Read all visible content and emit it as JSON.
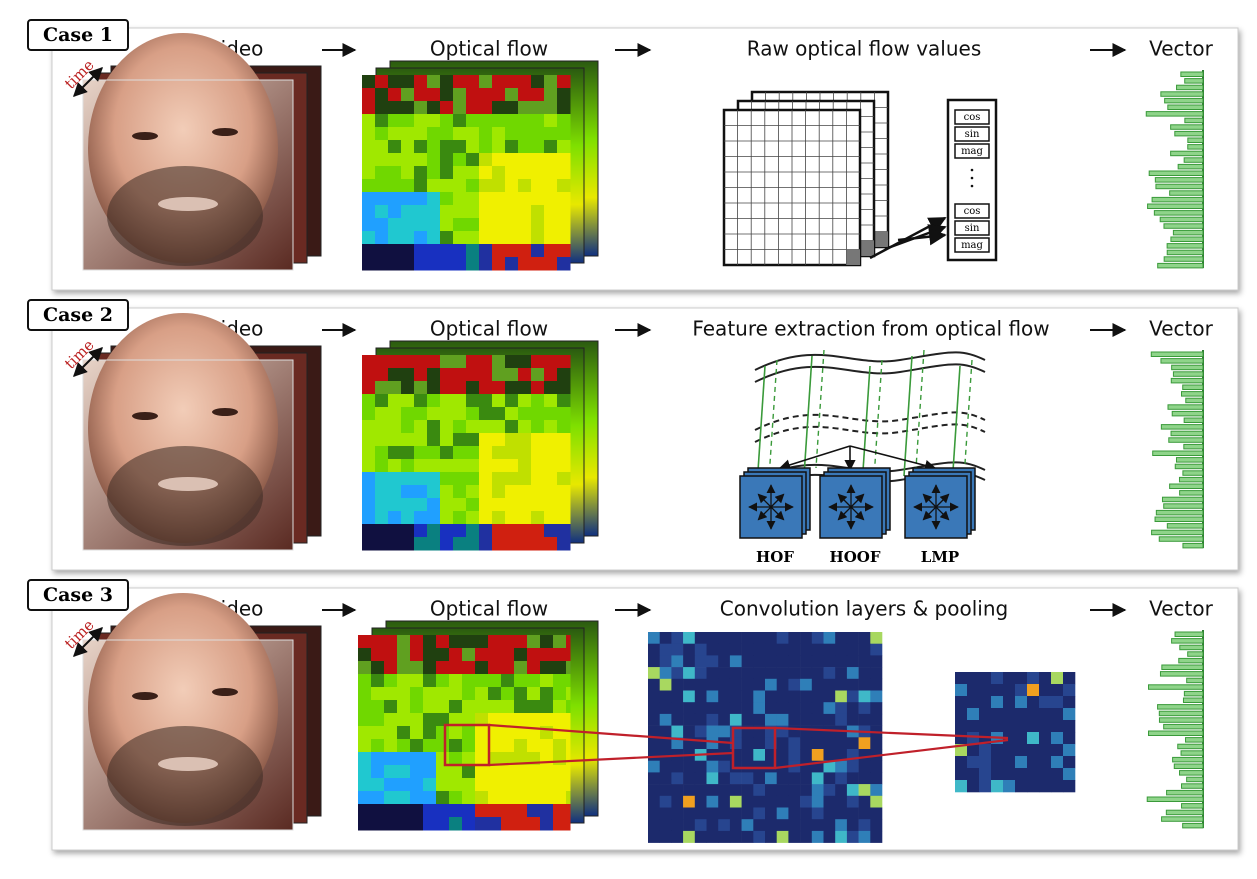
{
  "cases": [
    {
      "label": "Case 1",
      "time_label": "time",
      "stages": [
        "Input video",
        "Optical flow",
        "Raw optical flow values",
        "Vector"
      ],
      "flow_values": [
        [
          "cos",
          "sin",
          "mag"
        ],
        [
          "cos",
          "sin",
          "mag"
        ]
      ]
    },
    {
      "label": "Case 2",
      "time_label": "time",
      "stages": [
        "Input video",
        "Optical flow",
        "Feature extraction from optical flow",
        "Vector"
      ],
      "descriptors": [
        "HOF",
        "HOOF",
        "LMP"
      ]
    },
    {
      "label": "Case 3",
      "time_label": "time",
      "stages": [
        "Input video",
        "Optical flow",
        "Convolution layers & pooling",
        "Vector"
      ]
    }
  ]
}
